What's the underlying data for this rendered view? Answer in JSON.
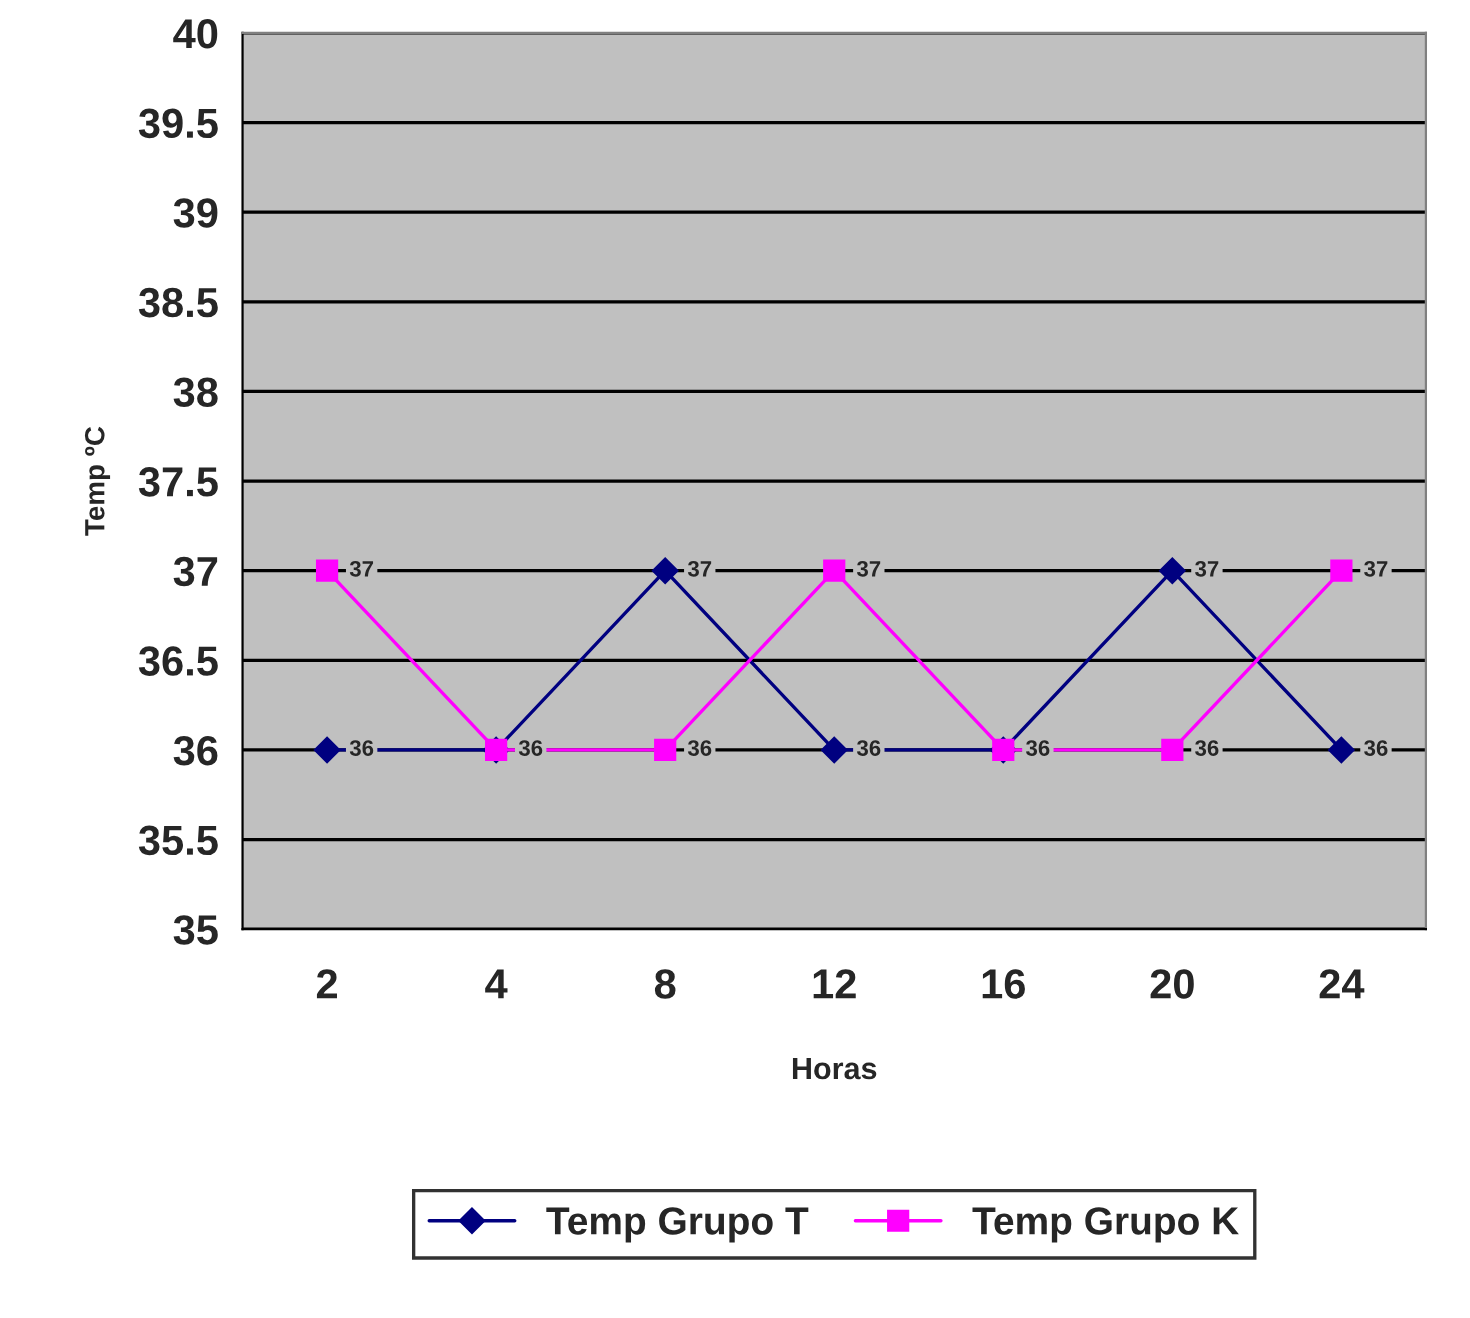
{
  "chart_data": {
    "type": "line",
    "xlabel": "Horas",
    "ylabel": "Temp ºC",
    "categories": [
      "2",
      "4",
      "8",
      "12",
      "16",
      "20",
      "24"
    ],
    "series": [
      {
        "name": "Temp Grupo T",
        "color": "#000080",
        "marker": "diamond",
        "values": [
          36,
          36,
          37,
          36,
          36,
          37,
          36
        ],
        "value_labels": [
          "36",
          "36",
          "37",
          "36",
          "36",
          "37",
          "36"
        ]
      },
      {
        "name": "Temp Grupo K",
        "color": "#ff00ff",
        "marker": "square",
        "values": [
          37,
          36,
          36,
          37,
          36,
          36,
          37
        ],
        "value_labels": [
          "37",
          null,
          "36",
          "37",
          null,
          "36",
          "37"
        ]
      }
    ],
    "ylim": [
      35,
      40
    ],
    "yticks": [
      35,
      35.5,
      36,
      36.5,
      37,
      37.5,
      38,
      38.5,
      39,
      39.5,
      40
    ],
    "grid": "y",
    "legend": "bottom",
    "line_style": "solid"
  }
}
